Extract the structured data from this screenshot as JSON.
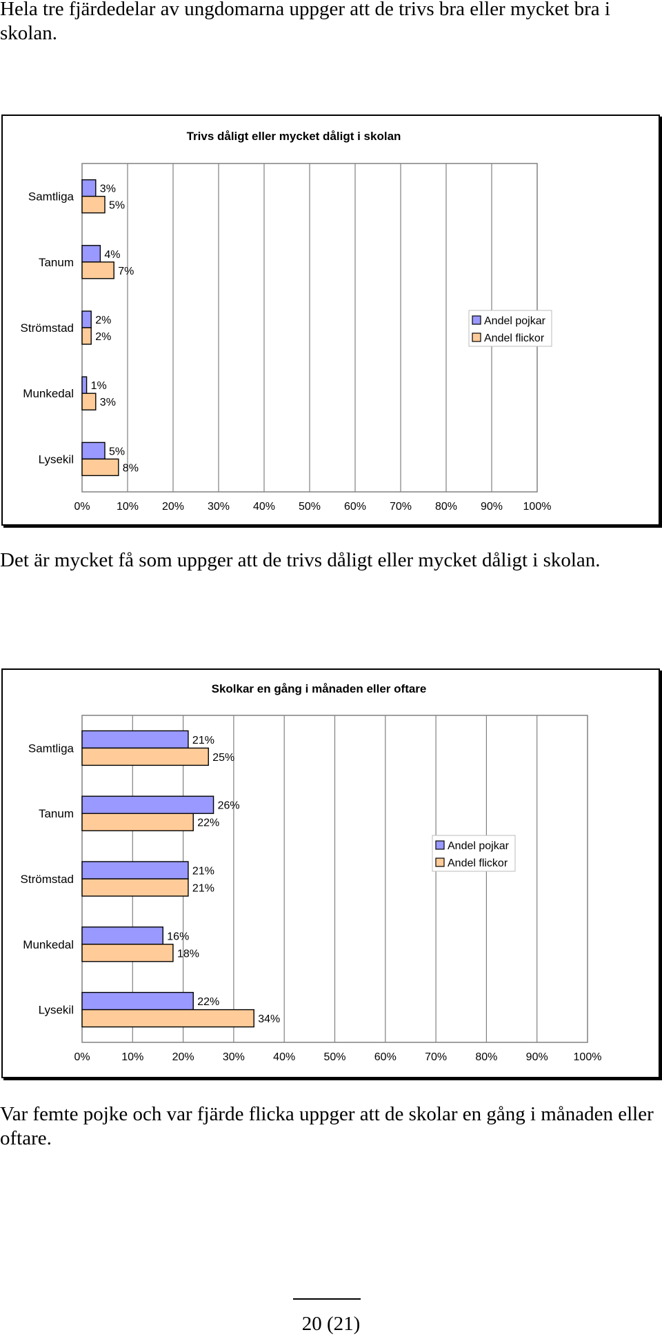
{
  "paragraphs": {
    "p1": "Hela tre fjärdedelar av ungdomarna uppger att de trivs bra eller mycket bra i skolan.",
    "p2": "Det är mycket få som uppger att de trivs dåligt eller mycket dåligt i skolan.",
    "p3": "Var femte pojke och var fjärde flicka uppger att de skolar en gång i månaden eller oftare."
  },
  "footer": {
    "page_number": "20 (21)"
  },
  "colors": {
    "boys": "#9999ff",
    "girls": "#ffcc99",
    "grid": "#808080",
    "bar_stroke": "#000000"
  },
  "chart_data": [
    {
      "type": "bar",
      "orientation": "horizontal",
      "title": "Trivs dåligt eller mycket dåligt i skolan",
      "categories": [
        "Samtliga",
        "Tanum",
        "Strömstad",
        "Munkedal",
        "Lysekil"
      ],
      "series": [
        {
          "name": "Andel pojkar",
          "values": [
            3,
            4,
            2,
            1,
            5
          ],
          "labels": [
            "3%",
            "4%",
            "2%",
            "1%",
            "5%"
          ]
        },
        {
          "name": "Andel flickor",
          "values": [
            5,
            7,
            2,
            3,
            8
          ],
          "labels": [
            "5%",
            "7%",
            "2%",
            "3%",
            "8%"
          ]
        }
      ],
      "xlim": [
        0,
        100
      ],
      "xticks": [
        "0%",
        "10%",
        "20%",
        "30%",
        "40%",
        "50%",
        "60%",
        "70%",
        "80%",
        "90%",
        "100%"
      ],
      "grid": true,
      "legend": "right"
    },
    {
      "type": "bar",
      "orientation": "horizontal",
      "title": "Skolkar en gång i månaden eller oftare",
      "categories": [
        "Samtliga",
        "Tanum",
        "Strömstad",
        "Munkedal",
        "Lysekil"
      ],
      "series": [
        {
          "name": "Andel pojkar",
          "values": [
            21,
            26,
            21,
            16,
            22
          ],
          "labels": [
            "21%",
            "26%",
            "21%",
            "16%",
            "22%"
          ]
        },
        {
          "name": "Andel flickor",
          "values": [
            25,
            22,
            21,
            18,
            34
          ],
          "labels": [
            "25%",
            "22%",
            "21%",
            "18%",
            "34%"
          ]
        }
      ],
      "xlim": [
        0,
        100
      ],
      "xticks": [
        "0%",
        "10%",
        "20%",
        "30%",
        "40%",
        "50%",
        "60%",
        "70%",
        "80%",
        "90%",
        "100%"
      ],
      "grid": true,
      "legend": "right"
    }
  ]
}
